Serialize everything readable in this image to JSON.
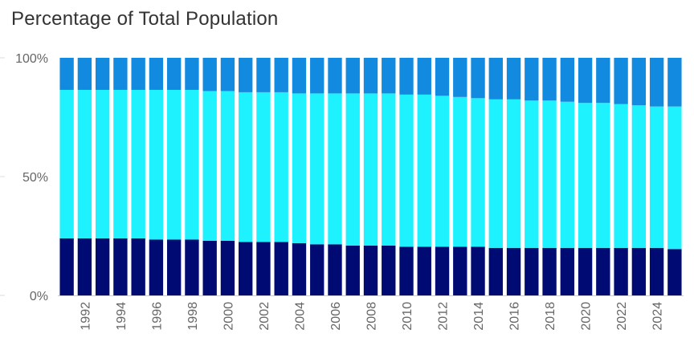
{
  "chart_data": {
    "type": "bar",
    "stacked": true,
    "title": "Percentage of Total Population",
    "xlabel": "",
    "ylabel": "",
    "ylim": [
      0,
      100
    ],
    "y_ticks": [
      "0%",
      "50%",
      "100%"
    ],
    "x_tick_labels": [
      "1992",
      "1994",
      "1996",
      "1998",
      "2000",
      "2002",
      "2004",
      "2006",
      "2008",
      "2010",
      "2012",
      "2014",
      "2016",
      "2018",
      "2020",
      "2022",
      "2024"
    ],
    "categories": [
      "1991",
      "1992",
      "1993",
      "1994",
      "1995",
      "1996",
      "1997",
      "1998",
      "1999",
      "2000",
      "2001",
      "2002",
      "2003",
      "2004",
      "2005",
      "2006",
      "2007",
      "2008",
      "2009",
      "2010",
      "2011",
      "2012",
      "2013",
      "2014",
      "2015",
      "2016",
      "2017",
      "2018",
      "2019",
      "2020",
      "2021",
      "2022",
      "2023",
      "2024",
      "2025"
    ],
    "series": [
      {
        "color": "#000a73",
        "values": [
          24,
          24,
          24,
          24,
          24,
          23.5,
          23.5,
          23.5,
          23,
          23,
          22.5,
          22.5,
          22.5,
          22,
          21.5,
          21.5,
          21,
          21,
          21,
          20.5,
          20.5,
          20.5,
          20.5,
          20.5,
          20,
          20,
          20,
          20,
          20,
          20,
          20,
          20,
          20,
          20,
          19.5
        ]
      },
      {
        "color": "#1ff2ff",
        "values": [
          62.5,
          62.5,
          62.5,
          62.5,
          62.5,
          63,
          63,
          63,
          63,
          63,
          63,
          63,
          63,
          63,
          63.5,
          63.5,
          64,
          64,
          64,
          64,
          64,
          63.5,
          63,
          62.5,
          62.5,
          62.5,
          62,
          62,
          61.5,
          61,
          61,
          60.5,
          60,
          59.5,
          60
        ]
      },
      {
        "color": "#128ae0",
        "values": [
          13.5,
          13.5,
          13.5,
          13.5,
          13.5,
          13.5,
          13.5,
          13.5,
          14,
          14,
          14.5,
          14.5,
          14.5,
          15,
          15,
          15,
          15,
          15,
          15,
          15.5,
          15.5,
          16,
          16.5,
          17,
          17.5,
          17.5,
          18,
          18,
          18.5,
          19,
          19,
          19.5,
          20,
          20.5,
          20.5
        ]
      }
    ],
    "grid": false,
    "legend": "none"
  }
}
